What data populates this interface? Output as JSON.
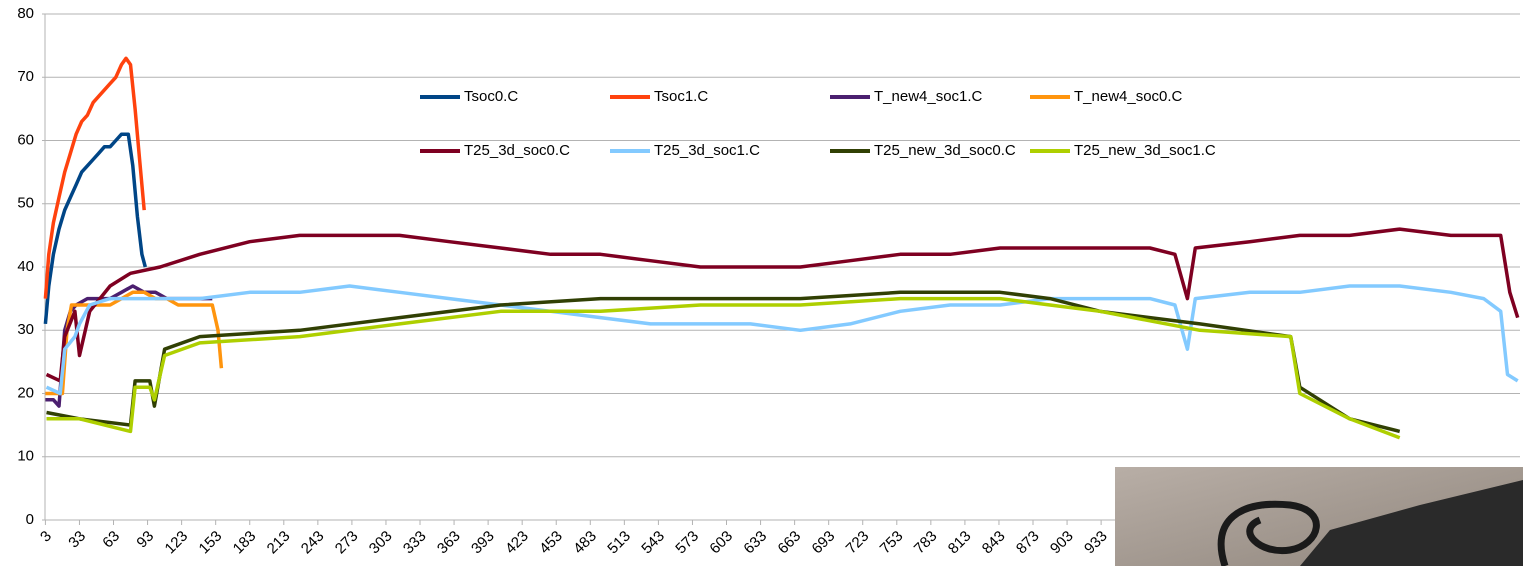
{
  "chart_data": {
    "type": "line",
    "xlim": [
      0,
      1302
    ],
    "ylim": [
      0,
      80
    ],
    "yticks": [
      0,
      10,
      20,
      30,
      40,
      50,
      60,
      70,
      80
    ],
    "xticks": [
      3,
      33,
      63,
      93,
      123,
      153,
      183,
      213,
      243,
      273,
      303,
      333,
      363,
      393,
      423,
      453,
      483,
      513,
      543,
      573,
      603,
      633,
      663,
      693,
      723,
      753,
      783,
      813,
      843,
      873,
      903,
      933
    ],
    "grid": true,
    "series": [
      {
        "name": "Tsoc0.C",
        "color": "#004586",
        "x": [
          3,
          6,
          10,
          15,
          20,
          25,
          30,
          35,
          40,
          45,
          50,
          55,
          60,
          65,
          70,
          76,
          80,
          84,
          88,
          91
        ],
        "values": [
          31,
          37,
          42,
          46,
          49,
          51,
          53,
          55,
          56,
          57,
          58,
          59,
          59,
          60,
          61,
          61,
          56,
          48,
          42,
          40
        ]
      },
      {
        "name": "Tsoc1.C",
        "color": "#ff420e",
        "x": [
          3,
          6,
          10,
          15,
          20,
          25,
          30,
          35,
          40,
          45,
          50,
          55,
          60,
          65,
          70,
          74,
          78,
          82,
          86,
          90
        ],
        "values": [
          35,
          42,
          47,
          51,
          55,
          58,
          61,
          63,
          64,
          66,
          67,
          68,
          69,
          70,
          72,
          73,
          72,
          65,
          57,
          49
        ]
      },
      {
        "name": "T_new4_soc1.C",
        "color": "#4b1f6f",
        "x": [
          3,
          10,
          15,
          20,
          25,
          30,
          40,
          50,
          60,
          70,
          80,
          90,
          100,
          110,
          120,
          135,
          150
        ],
        "values": [
          19,
          19,
          18,
          30,
          33,
          34,
          35,
          35,
          35,
          36,
          37,
          36,
          36,
          35,
          35,
          35,
          35
        ]
      },
      {
        "name": "T_new4_soc0.C",
        "color": "#ff950e",
        "x": [
          3,
          10,
          18,
          22,
          26,
          30,
          40,
          50,
          60,
          70,
          80,
          90,
          100,
          110,
          120,
          130,
          140,
          150,
          155,
          158
        ],
        "values": [
          20,
          20,
          20,
          30,
          34,
          34,
          34,
          34,
          34,
          35,
          36,
          36,
          35,
          35,
          34,
          34,
          34,
          34,
          30,
          24
        ]
      },
      {
        "name": "T25_3d_soc0.C",
        "color": "#7e0021",
        "x": [
          4,
          16,
          20,
          29,
          33,
          42,
          60,
          78,
          104,
          139,
          183,
          227,
          271,
          315,
          359,
          404,
          448,
          492,
          536,
          580,
          624,
          668,
          712,
          756,
          800,
          844,
          888,
          932,
          976,
          998,
          1009,
          1016,
          1064,
          1108,
          1152,
          1196,
          1241,
          1285,
          1293,
          1300
        ],
        "values": [
          23,
          22,
          29,
          33,
          26,
          33,
          37,
          39,
          40,
          42,
          44,
          45,
          45,
          45,
          44,
          43,
          42,
          42,
          41,
          40,
          40,
          40,
          41,
          42,
          42,
          43,
          43,
          43,
          43,
          42,
          35,
          43,
          44,
          45,
          45,
          46,
          45,
          45,
          36,
          32
        ]
      },
      {
        "name": "T25_3d_soc1.C",
        "color": "#83caff",
        "x": [
          4,
          16,
          20,
          29,
          33,
          42,
          60,
          78,
          104,
          139,
          183,
          227,
          271,
          315,
          359,
          404,
          448,
          492,
          536,
          580,
          624,
          668,
          712,
          756,
          800,
          844,
          888,
          932,
          976,
          998,
          1009,
          1016,
          1064,
          1108,
          1152,
          1196,
          1241,
          1270,
          1285,
          1291,
          1300
        ],
        "values": [
          21,
          20,
          27,
          29,
          31,
          34,
          35,
          35,
          35,
          35,
          36,
          36,
          37,
          36,
          35,
          34,
          33,
          32,
          31,
          31,
          31,
          30,
          31,
          33,
          34,
          34,
          35,
          35,
          35,
          34,
          27,
          35,
          36,
          36,
          37,
          37,
          36,
          35,
          33,
          23,
          22
        ]
      },
      {
        "name": "T25_new_3d_soc0.C",
        "color": "#314004",
        "x": [
          4,
          33,
          78,
          82,
          95,
          99,
          108,
          139,
          227,
          315,
          404,
          492,
          580,
          668,
          756,
          844,
          888,
          932,
          1020,
          1100,
          1108,
          1152,
          1196
        ],
        "values": [
          17,
          16,
          15,
          22,
          22,
          18,
          27,
          29,
          30,
          32,
          34,
          35,
          35,
          35,
          36,
          36,
          35,
          33,
          31,
          29,
          21,
          16,
          14
        ]
      },
      {
        "name": "T25_new_3d_soc1.C",
        "color": "#aecf00",
        "x": [
          4,
          33,
          78,
          82,
          95,
          99,
          108,
          139,
          227,
          315,
          404,
          492,
          580,
          668,
          756,
          844,
          888,
          932,
          1020,
          1100,
          1108,
          1152,
          1196
        ],
        "values": [
          16,
          16,
          14,
          21,
          21,
          19,
          26,
          28,
          29,
          31,
          33,
          33,
          34,
          34,
          35,
          35,
          34,
          33,
          30,
          29,
          20,
          16,
          13
        ]
      }
    ]
  }
}
